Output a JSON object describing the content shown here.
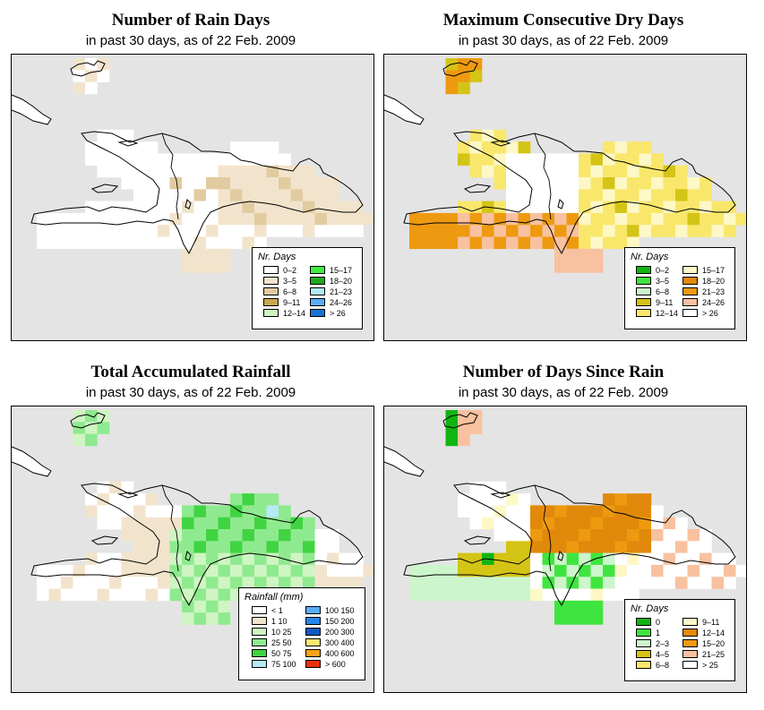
{
  "panels": [
    {
      "title": "Number of Rain Days",
      "subtitle": "in past 30 days, as of  22 Feb. 2009",
      "legend": {
        "title": "Nr. Days",
        "columns": [
          [
            {
              "label": "0–2",
              "color": "#ffffff"
            },
            {
              "label": "3–5",
              "color": "#f2e4cc"
            },
            {
              "label": "6–8",
              "color": "#e1cba0"
            },
            {
              "label": "9–11",
              "color": "#c9a84a"
            },
            {
              "label": "12–14",
              "color": "#cff5c2"
            }
          ],
          [
            {
              "label": "15–17",
              "color": "#41ea41"
            },
            {
              "label": "18–20",
              "color": "#1fa81f"
            },
            {
              "label": "21–23",
              "color": "#b4e9f5"
            },
            {
              "label": "24–26",
              "color": "#5aaef5"
            },
            {
              "label": "> 26",
              "color": "#1673d3"
            }
          ]
        ]
      }
    },
    {
      "title": "Maximum Consecutive Dry Days",
      "subtitle": "in past 30 days, as of  22 Feb. 2009",
      "legend": {
        "title": "Nr. Days",
        "columns": [
          [
            {
              "label": "0–2",
              "color": "#11b511"
            },
            {
              "label": "3–5",
              "color": "#3fe53f"
            },
            {
              "label": "6–8",
              "color": "#ccf5cc"
            },
            {
              "label": "9–11",
              "color": "#d4c416"
            },
            {
              "label": "12–14",
              "color": "#f9e76c"
            }
          ],
          [
            {
              "label": "15–17",
              "color": "#fdf8c6"
            },
            {
              "label": "18–20",
              "color": "#e1890a"
            },
            {
              "label": "21–23",
              "color": "#ee9a10"
            },
            {
              "label": "24–26",
              "color": "#f8c1a0"
            },
            {
              "label": "> 26",
              "color": "#ffffff"
            }
          ]
        ]
      }
    },
    {
      "title": "Total Accumulated Rainfall",
      "subtitle": "in past 30 days, as of  22 Feb. 2009",
      "legend": {
        "title": "Rainfall (mm)",
        "columns": [
          [
            {
              "label": "< 1",
              "color": "#ffffff"
            },
            {
              "label": "1    10",
              "color": "#f2e4cc"
            },
            {
              "label": "10    25",
              "color": "#cff5c2"
            },
            {
              "label": "25    50",
              "color": "#8fea8f"
            },
            {
              "label": "50    75",
              "color": "#41d441"
            },
            {
              "label": "75   100",
              "color": "#b4e9f5"
            }
          ],
          [
            {
              "label": "100   150",
              "color": "#5aaef5"
            },
            {
              "label": "150   200",
              "color": "#2a86e8"
            },
            {
              "label": "200   300",
              "color": "#1059c2"
            },
            {
              "label": "300   400",
              "color": "#fbe870"
            },
            {
              "label": "400   600",
              "color": "#f7a11a"
            },
            {
              "label": "> 600",
              "color": "#e8300a"
            }
          ]
        ]
      }
    },
    {
      "title": "Number of Days Since Rain",
      "subtitle": "in past 30 days, as of  22 Feb. 2009",
      "legend": {
        "title": "Nr. Days",
        "columns": [
          [
            {
              "label": "0",
              "color": "#11b511"
            },
            {
              "label": "1",
              "color": "#3fe53f"
            },
            {
              "label": "2–3",
              "color": "#ccf5cc"
            },
            {
              "label": "4–5",
              "color": "#d4c416"
            },
            {
              "label": "6–8",
              "color": "#f9e76c"
            }
          ],
          [
            {
              "label": "9–11",
              "color": "#fdf8c6"
            },
            {
              "label": "12–14",
              "color": "#e1890a"
            },
            {
              "label": "15–20",
              "color": "#ee9a10"
            },
            {
              "label": "21–25",
              "color": "#f8c1a0"
            },
            {
              "label": "> 25",
              "color": "#ffffff"
            }
          ]
        ]
      }
    }
  ]
}
